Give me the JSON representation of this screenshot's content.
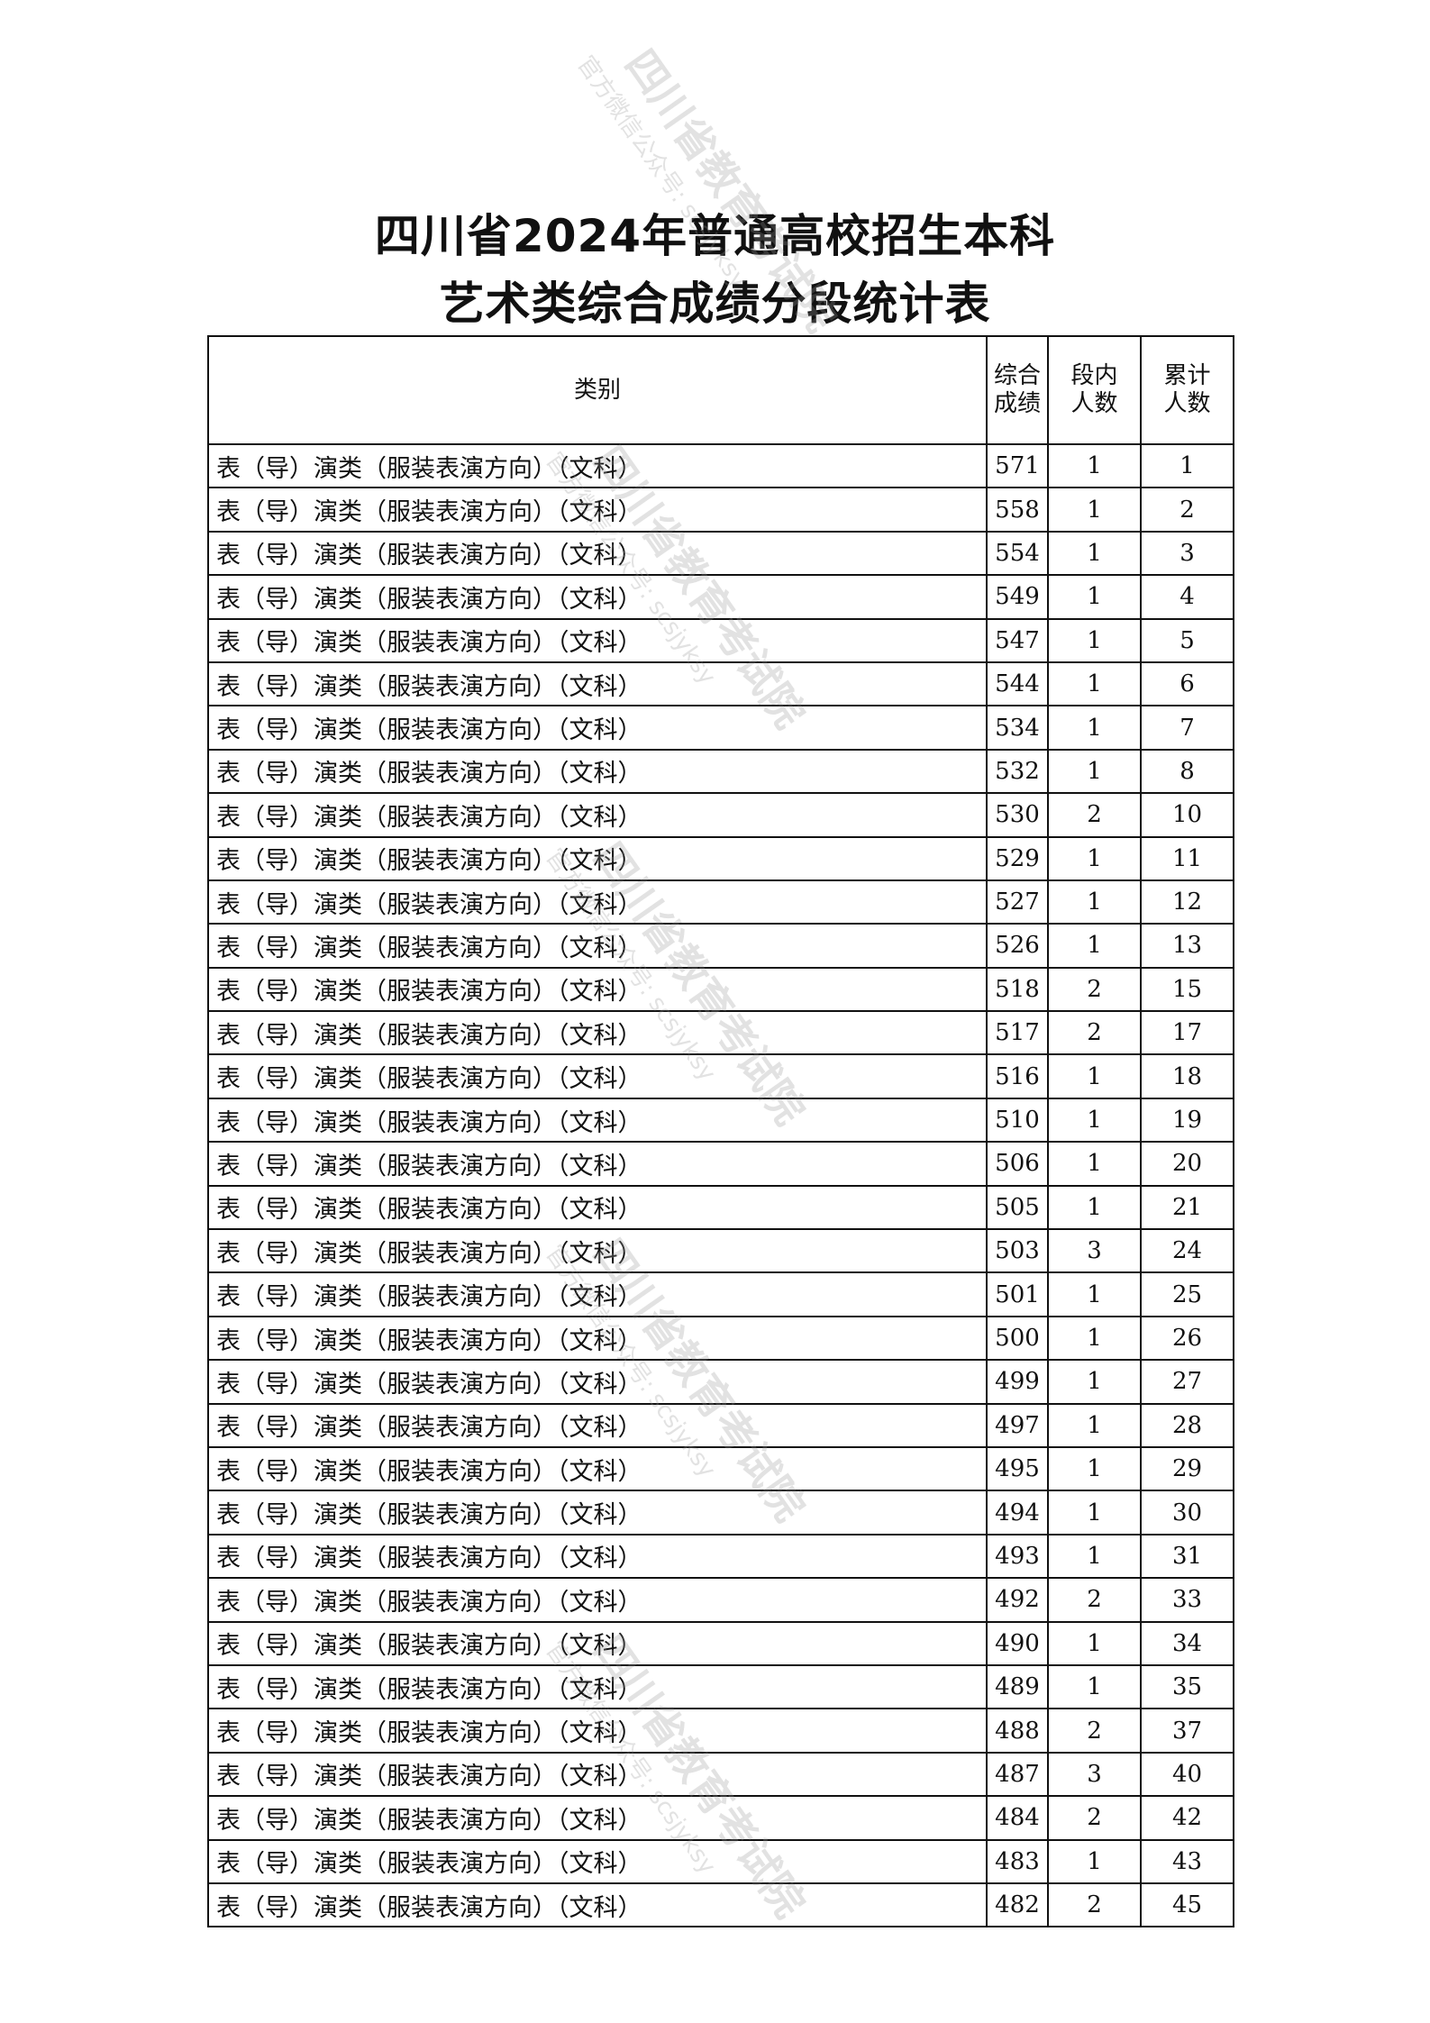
{
  "title": {
    "line1": "四川省2024年普通高校招生本科",
    "line2": "艺术类综合成绩分段统计表"
  },
  "watermark": {
    "main": "四川省教育考试院",
    "sub": "官方微信公众号: scsjyksy"
  },
  "table": {
    "headers": {
      "category": "类别",
      "score": "综合成绩",
      "segment": "段内人数",
      "cumulative": "累计人数"
    },
    "rows": [
      [
        "表（导）演类（服装表演方向）（文科）",
        "571",
        "1",
        "1"
      ],
      [
        "表（导）演类（服装表演方向）（文科）",
        "558",
        "1",
        "2"
      ],
      [
        "表（导）演类（服装表演方向）（文科）",
        "554",
        "1",
        "3"
      ],
      [
        "表（导）演类（服装表演方向）（文科）",
        "549",
        "1",
        "4"
      ],
      [
        "表（导）演类（服装表演方向）（文科）",
        "547",
        "1",
        "5"
      ],
      [
        "表（导）演类（服装表演方向）（文科）",
        "544",
        "1",
        "6"
      ],
      [
        "表（导）演类（服装表演方向）（文科）",
        "534",
        "1",
        "7"
      ],
      [
        "表（导）演类（服装表演方向）（文科）",
        "532",
        "1",
        "8"
      ],
      [
        "表（导）演类（服装表演方向）（文科）",
        "530",
        "2",
        "10"
      ],
      [
        "表（导）演类（服装表演方向）（文科）",
        "529",
        "1",
        "11"
      ],
      [
        "表（导）演类（服装表演方向）（文科）",
        "527",
        "1",
        "12"
      ],
      [
        "表（导）演类（服装表演方向）（文科）",
        "526",
        "1",
        "13"
      ],
      [
        "表（导）演类（服装表演方向）（文科）",
        "518",
        "2",
        "15"
      ],
      [
        "表（导）演类（服装表演方向）（文科）",
        "517",
        "2",
        "17"
      ],
      [
        "表（导）演类（服装表演方向）（文科）",
        "516",
        "1",
        "18"
      ],
      [
        "表（导）演类（服装表演方向）（文科）",
        "510",
        "1",
        "19"
      ],
      [
        "表（导）演类（服装表演方向）（文科）",
        "506",
        "1",
        "20"
      ],
      [
        "表（导）演类（服装表演方向）（文科）",
        "505",
        "1",
        "21"
      ],
      [
        "表（导）演类（服装表演方向）（文科）",
        "503",
        "3",
        "24"
      ],
      [
        "表（导）演类（服装表演方向）（文科）",
        "501",
        "1",
        "25"
      ],
      [
        "表（导）演类（服装表演方向）（文科）",
        "500",
        "1",
        "26"
      ],
      [
        "表（导）演类（服装表演方向）（文科）",
        "499",
        "1",
        "27"
      ],
      [
        "表（导）演类（服装表演方向）（文科）",
        "497",
        "1",
        "28"
      ],
      [
        "表（导）演类（服装表演方向）（文科）",
        "495",
        "1",
        "29"
      ],
      [
        "表（导）演类（服装表演方向）（文科）",
        "494",
        "1",
        "30"
      ],
      [
        "表（导）演类（服装表演方向）（文科）",
        "493",
        "1",
        "31"
      ],
      [
        "表（导）演类（服装表演方向）（文科）",
        "492",
        "2",
        "33"
      ],
      [
        "表（导）演类（服装表演方向）（文科）",
        "490",
        "1",
        "34"
      ],
      [
        "表（导）演类（服装表演方向）（文科）",
        "489",
        "1",
        "35"
      ],
      [
        "表（导）演类（服装表演方向）（文科）",
        "488",
        "2",
        "37"
      ],
      [
        "表（导）演类（服装表演方向）（文科）",
        "487",
        "3",
        "40"
      ],
      [
        "表（导）演类（服装表演方向）（文科）",
        "484",
        "2",
        "42"
      ],
      [
        "表（导）演类（服装表演方向）（文科）",
        "483",
        "1",
        "43"
      ],
      [
        "表（导）演类（服装表演方向）（文科）",
        "482",
        "2",
        "45"
      ]
    ]
  }
}
